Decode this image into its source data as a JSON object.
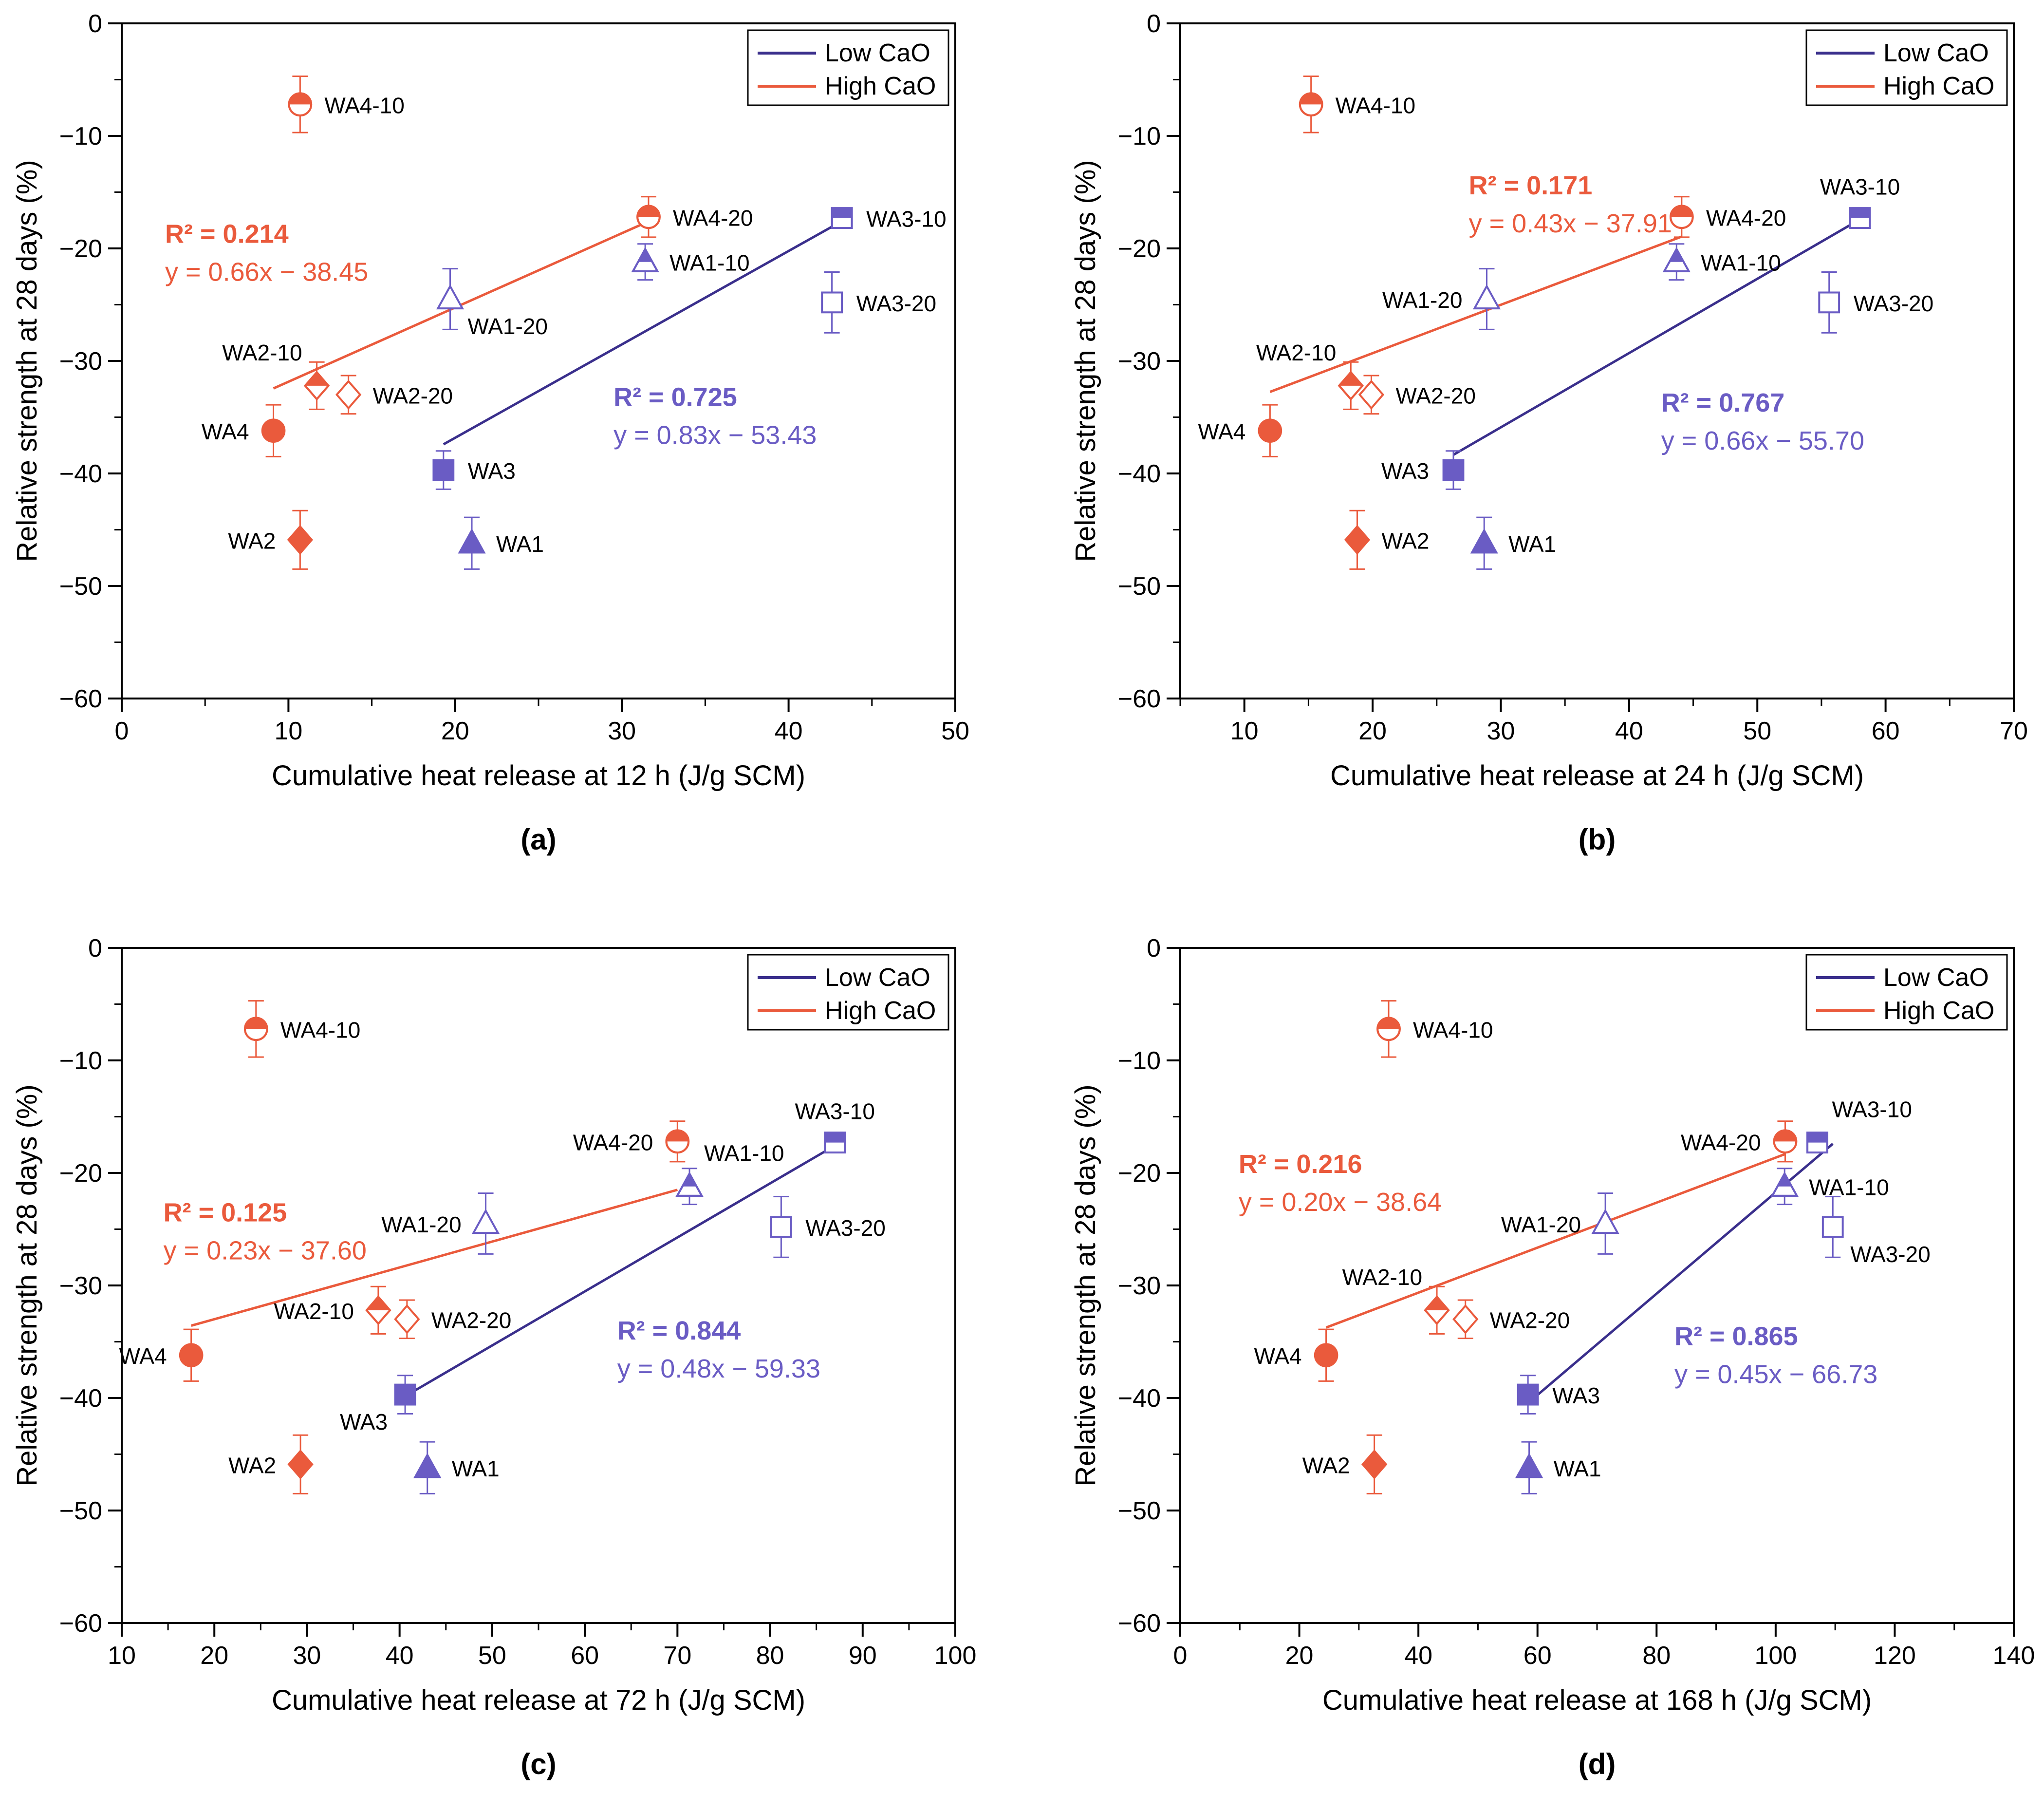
{
  "colors": {
    "low": "#6a5cc4",
    "low_line": "#3a2f8c",
    "high": "#ea5a3c",
    "axis": "#000000"
  },
  "legend": {
    "low": "Low CaO",
    "high": "High CaO"
  },
  "ylabel": "Relative strength at 28 days (%)",
  "chart_data": [
    {
      "type": "scatter",
      "panel_label": "(a)",
      "xlabel": "Cumulative heat release at 12 h (J/g SCM)",
      "xlim": [
        0,
        50
      ],
      "xticks": [
        "0",
        "10",
        "20",
        "30",
        "40",
        "50"
      ],
      "xstep": 10,
      "ylim": [
        -60,
        0
      ],
      "yticks": [
        "0",
        "−10",
        "−20",
        "−30",
        "−40",
        "−50",
        "−60"
      ],
      "points": [
        {
          "name": "WA1",
          "x": 21.0,
          "y": -46.2,
          "err": 2.3,
          "group": "low",
          "marker": "triangle-full",
          "label_pos": "right"
        },
        {
          "name": "WA1-10",
          "x": 31.4,
          "y": -21.2,
          "err": 1.6,
          "group": "low",
          "marker": "triangle-half",
          "label_pos": "right"
        },
        {
          "name": "WA1-20",
          "x": 19.7,
          "y": -24.5,
          "err": 2.7,
          "group": "low",
          "marker": "triangle-open",
          "label_pos": "below-right"
        },
        {
          "name": "WA3",
          "x": 19.3,
          "y": -39.7,
          "err": 1.7,
          "group": "low",
          "marker": "square-full",
          "label_pos": "right"
        },
        {
          "name": "WA3-10",
          "x": 43.2,
          "y": -17.3,
          "err": 0.9,
          "group": "low",
          "marker": "square-half",
          "label_pos": "right"
        },
        {
          "name": "WA3-20",
          "x": 42.6,
          "y": -24.8,
          "err": 2.7,
          "group": "low",
          "marker": "square-open",
          "label_pos": "right"
        },
        {
          "name": "WA2",
          "x": 10.7,
          "y": -45.9,
          "err": 2.6,
          "group": "high",
          "marker": "diamond-full",
          "label_pos": "left"
        },
        {
          "name": "WA2-10",
          "x": 11.7,
          "y": -32.2,
          "err": 2.1,
          "group": "high",
          "marker": "diamond-half",
          "label_pos": "above-left"
        },
        {
          "name": "WA2-20",
          "x": 13.6,
          "y": -33.0,
          "err": 1.7,
          "group": "high",
          "marker": "diamond-open",
          "label_pos": "right"
        },
        {
          "name": "WA4",
          "x": 9.1,
          "y": -36.2,
          "err": 2.3,
          "group": "high",
          "marker": "circle-full",
          "label_pos": "left"
        },
        {
          "name": "WA4-10",
          "x": 10.7,
          "y": -7.2,
          "err": 2.5,
          "group": "high",
          "marker": "circle-half",
          "label_pos": "right"
        },
        {
          "name": "WA4-20",
          "x": 31.6,
          "y": -17.2,
          "err": 1.8,
          "group": "high",
          "marker": "circle-half",
          "label_pos": "right"
        }
      ],
      "fits": [
        {
          "group": "low",
          "x": [
            19.3,
            43.2
          ],
          "r2": "R² = 0.725",
          "eq": "y = 0.83x − 53.43",
          "text_at": [
            29.5,
            -34.0
          ]
        },
        {
          "group": "high",
          "x": [
            9.1,
            31.6
          ],
          "r2": "R² = 0.214",
          "eq": "y = 0.66x − 38.45",
          "text_at": [
            2.6,
            -19.5
          ]
        }
      ]
    },
    {
      "type": "scatter",
      "panel_label": "(b)",
      "xlabel": "Cumulative heat release at 24 h (J/g SCM)",
      "xlim": [
        5,
        70
      ],
      "xticks": [
        "10",
        "20",
        "30",
        "40",
        "50",
        "60",
        "70"
      ],
      "xstep": 10,
      "xfirst": 10,
      "ylim": [
        -60,
        0
      ],
      "yticks": [
        "0",
        "−10",
        "−20",
        "−30",
        "−40",
        "−50",
        "−60"
      ],
      "points": [
        {
          "name": "WA1",
          "x": 28.7,
          "y": -46.2,
          "err": 2.3,
          "group": "low",
          "marker": "triangle-full",
          "label_pos": "right"
        },
        {
          "name": "WA1-10",
          "x": 43.7,
          "y": -21.2,
          "err": 1.6,
          "group": "low",
          "marker": "triangle-half",
          "label_pos": "right"
        },
        {
          "name": "WA1-20",
          "x": 28.9,
          "y": -24.5,
          "err": 2.7,
          "group": "low",
          "marker": "triangle-open",
          "label_pos": "left"
        },
        {
          "name": "WA3",
          "x": 26.3,
          "y": -39.7,
          "err": 1.7,
          "group": "low",
          "marker": "square-full",
          "label_pos": "left"
        },
        {
          "name": "WA3-10",
          "x": 58.0,
          "y": -17.3,
          "err": 0.9,
          "group": "low",
          "marker": "square-half",
          "label_pos": "above"
        },
        {
          "name": "WA3-20",
          "x": 55.6,
          "y": -24.8,
          "err": 2.7,
          "group": "low",
          "marker": "square-open",
          "label_pos": "right"
        },
        {
          "name": "WA2",
          "x": 18.8,
          "y": -45.9,
          "err": 2.6,
          "group": "high",
          "marker": "diamond-full",
          "label_pos": "right"
        },
        {
          "name": "WA2-10",
          "x": 18.3,
          "y": -32.2,
          "err": 2.1,
          "group": "high",
          "marker": "diamond-half",
          "label_pos": "above-left"
        },
        {
          "name": "WA2-20",
          "x": 19.9,
          "y": -33.0,
          "err": 1.7,
          "group": "high",
          "marker": "diamond-open",
          "label_pos": "right"
        },
        {
          "name": "WA4",
          "x": 12.0,
          "y": -36.2,
          "err": 2.3,
          "group": "high",
          "marker": "circle-full",
          "label_pos": "left"
        },
        {
          "name": "WA4-10",
          "x": 15.2,
          "y": -7.2,
          "err": 2.5,
          "group": "high",
          "marker": "circle-half",
          "label_pos": "right"
        },
        {
          "name": "WA4-20",
          "x": 44.1,
          "y": -17.2,
          "err": 1.8,
          "group": "high",
          "marker": "circle-half",
          "label_pos": "right"
        }
      ],
      "fits": [
        {
          "group": "low",
          "x": [
            26.3,
            58.0
          ],
          "r2": "R² = 0.767",
          "eq": "y = 0.66x − 55.70",
          "text_at": [
            42.5,
            -34.5
          ]
        },
        {
          "group": "high",
          "x": [
            12.0,
            44.1
          ],
          "r2": "R² = 0.171",
          "eq": "y = 0.43x − 37.91",
          "text_at": [
            27.5,
            -15.2
          ]
        }
      ]
    },
    {
      "type": "scatter",
      "panel_label": "(c)",
      "xlabel": "Cumulative heat release at 72 h (J/g SCM)",
      "xlim": [
        10,
        100
      ],
      "xticks": [
        "10",
        "20",
        "30",
        "40",
        "50",
        "60",
        "70",
        "80",
        "90",
        "100"
      ],
      "xstep": 10,
      "xfirst": 10,
      "ylim": [
        -60,
        0
      ],
      "yticks": [
        "0",
        "−10",
        "−20",
        "−30",
        "−40",
        "−50",
        "−60"
      ],
      "points": [
        {
          "name": "WA1",
          "x": 43.0,
          "y": -46.2,
          "err": 2.3,
          "group": "low",
          "marker": "triangle-full",
          "label_pos": "right"
        },
        {
          "name": "WA1-10",
          "x": 71.3,
          "y": -21.2,
          "err": 1.6,
          "group": "low",
          "marker": "triangle-half",
          "label_pos": "above-right"
        },
        {
          "name": "WA1-20",
          "x": 49.3,
          "y": -24.5,
          "err": 2.7,
          "group": "low",
          "marker": "triangle-open",
          "label_pos": "left"
        },
        {
          "name": "WA3",
          "x": 40.6,
          "y": -39.7,
          "err": 1.7,
          "group": "low",
          "marker": "square-full",
          "label_pos": "below-left"
        },
        {
          "name": "WA3-10",
          "x": 87.0,
          "y": -17.3,
          "err": 0.9,
          "group": "low",
          "marker": "square-half",
          "label_pos": "above"
        },
        {
          "name": "WA3-20",
          "x": 81.2,
          "y": -24.8,
          "err": 2.7,
          "group": "low",
          "marker": "square-open",
          "label_pos": "right"
        },
        {
          "name": "WA2",
          "x": 29.3,
          "y": -45.9,
          "err": 2.6,
          "group": "high",
          "marker": "diamond-full",
          "label_pos": "left"
        },
        {
          "name": "WA2-10",
          "x": 37.7,
          "y": -32.2,
          "err": 2.1,
          "group": "high",
          "marker": "diamond-half",
          "label_pos": "left"
        },
        {
          "name": "WA2-20",
          "x": 40.8,
          "y": -33.0,
          "err": 1.7,
          "group": "high",
          "marker": "diamond-open",
          "label_pos": "right"
        },
        {
          "name": "WA4",
          "x": 17.5,
          "y": -36.2,
          "err": 2.3,
          "group": "high",
          "marker": "circle-full",
          "label_pos": "left"
        },
        {
          "name": "WA4-10",
          "x": 24.5,
          "y": -7.2,
          "err": 2.5,
          "group": "high",
          "marker": "circle-half",
          "label_pos": "right"
        },
        {
          "name": "WA4-20",
          "x": 70.0,
          "y": -17.2,
          "err": 1.8,
          "group": "high",
          "marker": "circle-half",
          "label_pos": "left"
        }
      ],
      "fits": [
        {
          "group": "low",
          "x": [
            40.6,
            87.0
          ],
          "r2": "R² = 0.844",
          "eq": "y = 0.48x − 59.33",
          "text_at": [
            63.5,
            -34.8
          ]
        },
        {
          "group": "high",
          "x": [
            17.5,
            70.0
          ],
          "r2": "R² = 0.125",
          "eq": "y = 0.23x − 37.60",
          "text_at": [
            14.5,
            -24.3
          ]
        }
      ]
    },
    {
      "type": "scatter",
      "panel_label": "(d)",
      "xlabel": "Cumulative heat release at 168 h (J/g SCM)",
      "xlim": [
        0,
        140
      ],
      "xticks": [
        "0",
        "20",
        "40",
        "60",
        "80",
        "100",
        "120",
        "140"
      ],
      "xstep": 20,
      "ylim": [
        -60,
        0
      ],
      "yticks": [
        "0",
        "−10",
        "−20",
        "−30",
        "−40",
        "−50",
        "−60"
      ],
      "points": [
        {
          "name": "WA1",
          "x": 58.6,
          "y": -46.2,
          "err": 2.3,
          "group": "low",
          "marker": "triangle-full",
          "label_pos": "right"
        },
        {
          "name": "WA1-10",
          "x": 101.5,
          "y": -21.2,
          "err": 1.6,
          "group": "low",
          "marker": "triangle-half",
          "label_pos": "right"
        },
        {
          "name": "WA1-20",
          "x": 71.4,
          "y": -24.5,
          "err": 2.7,
          "group": "low",
          "marker": "triangle-open",
          "label_pos": "left"
        },
        {
          "name": "WA3",
          "x": 58.4,
          "y": -39.7,
          "err": 1.7,
          "group": "low",
          "marker": "square-full",
          "label_pos": "right"
        },
        {
          "name": "WA3-10",
          "x": 107.0,
          "y": -17.3,
          "err": 0.9,
          "group": "low",
          "marker": "square-half",
          "label_pos": "above-right"
        },
        {
          "name": "WA3-20",
          "x": 109.6,
          "y": -24.8,
          "err": 2.7,
          "group": "low",
          "marker": "square-open",
          "label_pos": "below-right"
        },
        {
          "name": "WA2",
          "x": 32.6,
          "y": -45.9,
          "err": 2.6,
          "group": "high",
          "marker": "diamond-full",
          "label_pos": "left"
        },
        {
          "name": "WA2-10",
          "x": 43.1,
          "y": -32.2,
          "err": 2.1,
          "group": "high",
          "marker": "diamond-half",
          "label_pos": "above-left"
        },
        {
          "name": "WA2-20",
          "x": 47.9,
          "y": -33.0,
          "err": 1.7,
          "group": "high",
          "marker": "diamond-open",
          "label_pos": "right"
        },
        {
          "name": "WA4",
          "x": 24.5,
          "y": -36.2,
          "err": 2.3,
          "group": "high",
          "marker": "circle-full",
          "label_pos": "left"
        },
        {
          "name": "WA4-10",
          "x": 35.0,
          "y": -7.2,
          "err": 2.5,
          "group": "high",
          "marker": "circle-half",
          "label_pos": "right"
        },
        {
          "name": "WA4-20",
          "x": 101.6,
          "y": -17.2,
          "err": 1.8,
          "group": "high",
          "marker": "circle-half",
          "label_pos": "left"
        }
      ],
      "fits": [
        {
          "group": "low",
          "x": [
            58.4,
            109.6
          ],
          "r2": "R² = 0.865",
          "eq": "y = 0.45x − 66.73",
          "text_at": [
            83.0,
            -35.3
          ]
        },
        {
          "group": "high",
          "x": [
            24.5,
            101.6
          ],
          "r2": "R² = 0.216",
          "eq": "y = 0.20x − 38.64",
          "text_at": [
            9.8,
            -20.0
          ]
        }
      ]
    }
  ]
}
